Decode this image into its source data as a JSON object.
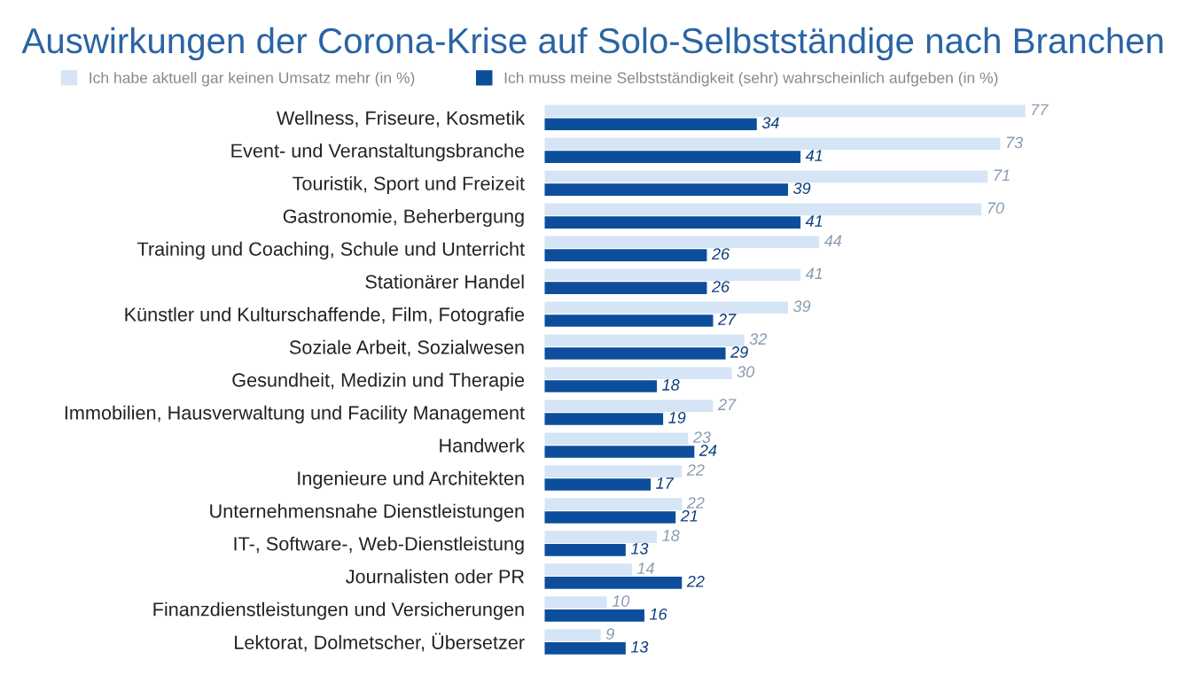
{
  "chart_data": {
    "type": "bar",
    "orientation": "horizontal",
    "title": "Auswirkungen der Corona-Krise auf Solo-Selbstständige nach Branchen",
    "categories": [
      "Wellness, Friseure, Kosmetik",
      "Event- und Veranstaltungsbranche",
      "Touristik, Sport und Freizeit",
      "Gastronomie, Beherbergung",
      "Training und Coaching, Schule und Unterricht",
      "Stationärer Handel",
      "Künstler und Kulturschaffende, Film, Fotografie",
      "Soziale Arbeit, Sozialwesen",
      "Gesundheit, Medizin und Therapie",
      "Immobilien, Hausverwaltung und Facility Management",
      "Handwerk",
      "Ingenieure und Architekten",
      "Unternehmensnahe Dienstleistungen",
      "IT-, Software-, Web-Dienstleistung",
      "Journalisten oder PR",
      "Finanzdienstleistungen und Versicherungen",
      "Lektorat, Dolmetscher, Übersetzer"
    ],
    "series": [
      {
        "name": "Ich habe aktuell gar keinen Umsatz mehr (in %)",
        "color": "#d5e5f5",
        "values": [
          77,
          73,
          71,
          70,
          44,
          41,
          39,
          32,
          30,
          27,
          23,
          22,
          22,
          18,
          14,
          10,
          9
        ]
      },
      {
        "name": "Ich muss meine Selbstständigkeit (sehr) wahrscheinlich aufgeben (in %)",
        "color": "#0c4e9c",
        "values": [
          34,
          41,
          39,
          41,
          26,
          26,
          27,
          29,
          18,
          19,
          24,
          17,
          21,
          13,
          22,
          16,
          13
        ]
      }
    ],
    "data_labels": true,
    "legend": "top",
    "grid": false
  }
}
